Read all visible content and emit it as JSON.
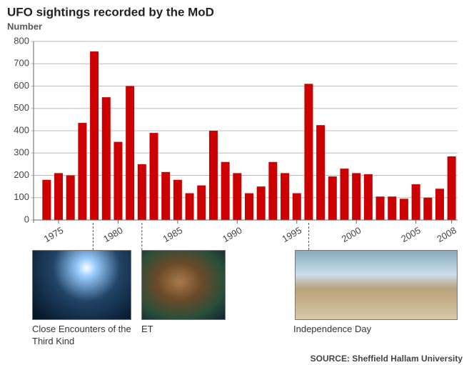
{
  "chart_data": {
    "type": "bar",
    "title": "UFO sightings recorded by the MoD",
    "y_label": "Number",
    "source": "SOURCE: Sheffield Hallam University",
    "x": [
      1974,
      1975,
      1976,
      1977,
      1978,
      1979,
      1980,
      1981,
      1982,
      1983,
      1984,
      1985,
      1986,
      1987,
      1988,
      1989,
      1990,
      1991,
      1992,
      1993,
      1994,
      1995,
      1996,
      1997,
      1998,
      1999,
      2000,
      2001,
      2002,
      2003,
      2004,
      2005,
      2006,
      2007,
      2008
    ],
    "values": [
      180,
      210,
      200,
      435,
      755,
      550,
      350,
      600,
      250,
      390,
      215,
      180,
      120,
      155,
      400,
      260,
      210,
      120,
      150,
      260,
      210,
      120,
      610,
      425,
      195,
      230,
      210,
      205,
      105,
      105,
      95,
      160,
      100,
      140,
      285
    ],
    "color": "#cc0000",
    "xlim": [
      1973.5,
      2008.5
    ],
    "xticks": [
      1975,
      1980,
      1985,
      1990,
      1995,
      2000,
      2005,
      2008
    ],
    "ylim": [
      0,
      800
    ],
    "yticks": [
      0,
      100,
      200,
      300,
      400,
      500,
      600,
      700,
      800
    ],
    "grid": true,
    "annotations": [
      {
        "text": "Close Encounters of the Third Kind",
        "x": 1977.9
      },
      {
        "text": "ET",
        "x": 1982
      },
      {
        "text": "Independence Day",
        "x": 1996
      }
    ]
  }
}
